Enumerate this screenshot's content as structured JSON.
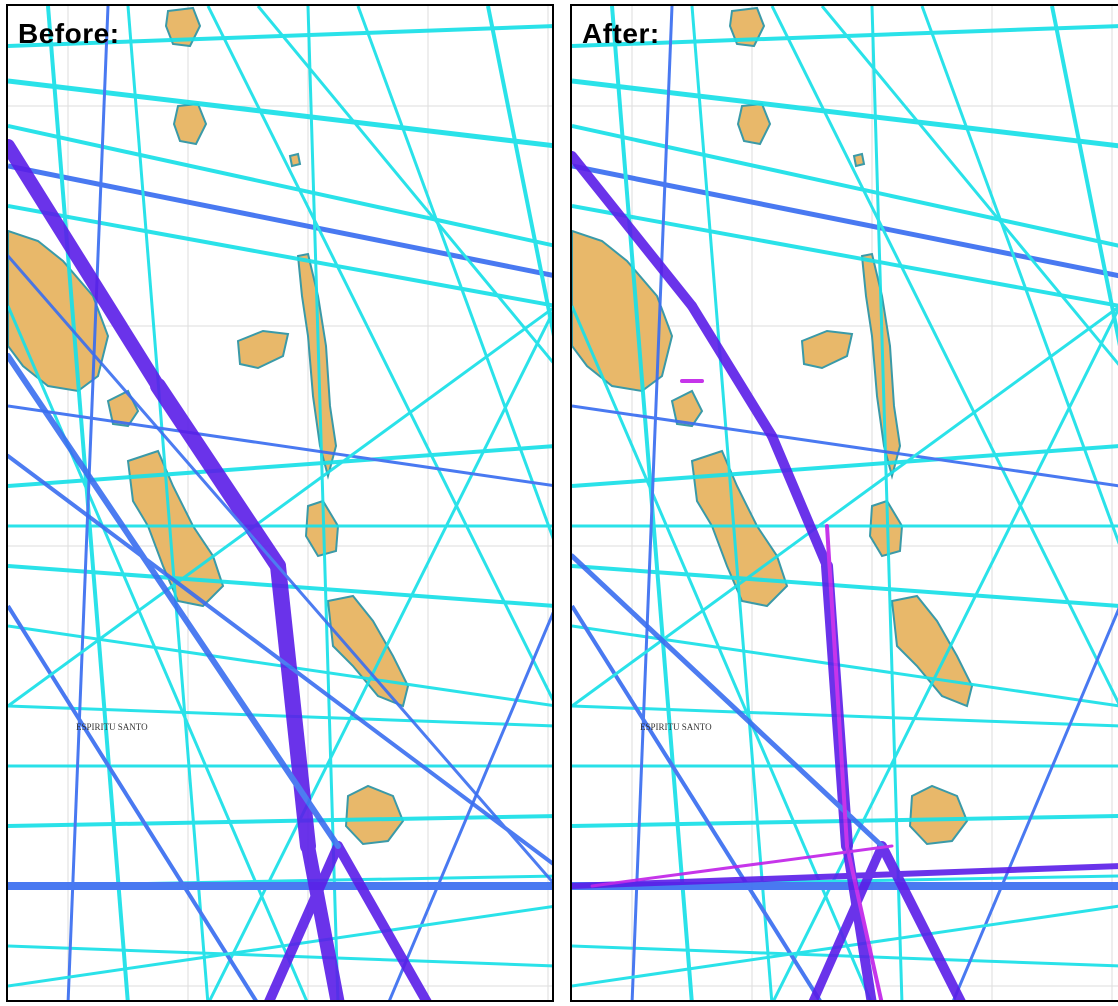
{
  "panels": [
    {
      "id": "before",
      "label": "Before:"
    },
    {
      "id": "after",
      "label": "After:"
    }
  ],
  "map": {
    "place_label": "ESPIRITU SANTO",
    "colors": {
      "water": "#ffffff",
      "land": "#e8b86a",
      "coast": "#3a9aa8",
      "track_light": "#19e0e8",
      "track_mid": "#3a6ef0",
      "track_dark": "#5a1ee8",
      "track_highlight": "#c020e8"
    }
  }
}
